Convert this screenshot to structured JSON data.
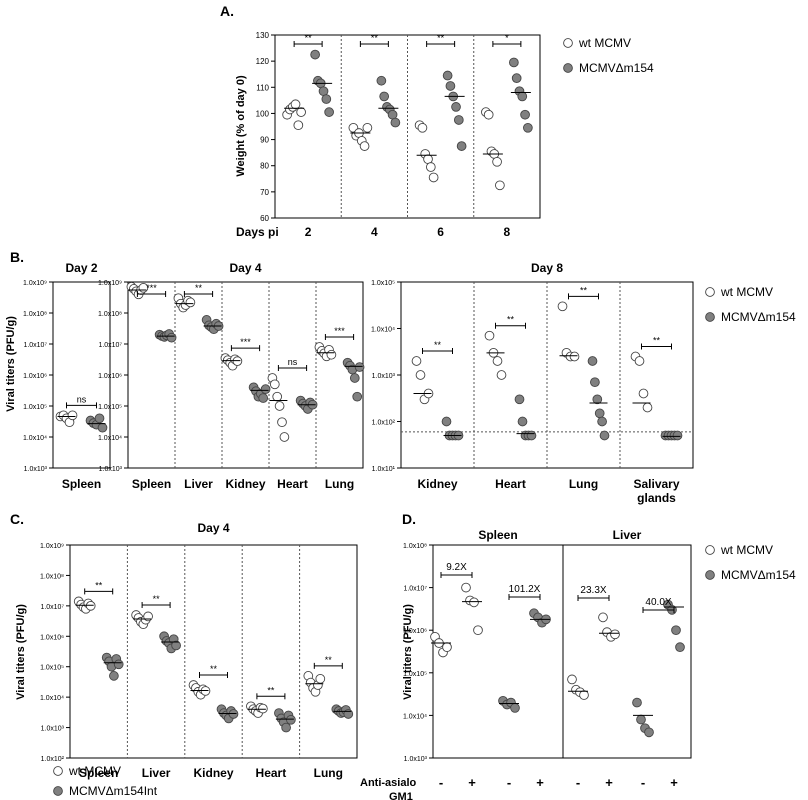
{
  "chart_data": [
    {
      "panel": "A.",
      "type": "scatter",
      "ylabel": "Weight (% of day 0)",
      "xlabel": "Days pi",
      "ylim": [
        60,
        130
      ],
      "yticks": [
        60,
        70,
        80,
        90,
        100,
        110,
        120,
        130
      ],
      "categories": [
        "2",
        "4",
        "6",
        "8"
      ],
      "legend": [
        "wt MCMV",
        "MCMVΔm154"
      ],
      "series": [
        {
          "name": "wt MCMV",
          "fill": "#ffffff",
          "values": [
            [
              99.5,
              101.5,
              102.5,
              103.5,
              95.5,
              100.5
            ],
            [
              94.5,
              91.5,
              92.5,
              89.5,
              87.5,
              94.5
            ],
            [
              95.5,
              94.5,
              84.5,
              82.5,
              79.5,
              75.5
            ],
            [
              100.5,
              99.5,
              85.5,
              84.5,
              81.5,
              72.5
            ]
          ],
          "medians": [
            102,
            92.5,
            84,
            84.5
          ]
        },
        {
          "name": "MCMVΔm154",
          "fill": "#808080",
          "values": [
            [
              122.5,
              112.5,
              111.5,
              108.5,
              105.5,
              100.5
            ],
            [
              112.5,
              106.5,
              102.5,
              101.5,
              99.5,
              96.5
            ],
            [
              114.5,
              110.5,
              106.5,
              102.5,
              97.5,
              87.5
            ],
            [
              119.5,
              113.5,
              108.5,
              106.5,
              99.5,
              94.5
            ]
          ],
          "medians": [
            111.5,
            102,
            106.5,
            108
          ]
        }
      ],
      "significance": [
        "**",
        "**",
        "**",
        "*"
      ]
    },
    {
      "panel": "B.",
      "type": "scatter",
      "ylabel": "Viral titers (PFU/g)",
      "log_scale": true,
      "subpanels": [
        {
          "title": "Day 2",
          "yticks": [
            "1.0x10³",
            "1.0x10⁴",
            "1.0x10⁵",
            "1.0x10⁶",
            "1.0x10⁷",
            "1.0x10⁸",
            "1.0x10⁹"
          ],
          "categories": [
            "Spleen"
          ],
          "wt MCMV": [
            [
              46000,
              50000,
              40000,
              30000,
              50000
            ]
          ],
          "MCMVΔm154": [
            [
              34000,
              28000,
              25000,
              40000,
              20000
            ]
          ],
          "medians": [
            [
              46000,
              27000
            ]
          ],
          "significance": [
            "ns"
          ]
        },
        {
          "title": "Day 4",
          "yticks": [
            "1.0x10³",
            "1.0x10⁴",
            "1.0x10⁵",
            "1.0x10⁶",
            "1.0x10⁷",
            "1.0x10⁸",
            "1.0x10⁹"
          ],
          "categories": [
            "Spleen",
            "Liver",
            "Kidney",
            "Heart",
            "Lung"
          ],
          "wt MCMV": [
            [
              700000000,
              600000000,
              500000000,
              400000000,
              550000000,
              650000000
            ],
            [
              300000000,
              200000000,
              150000000,
              180000000,
              250000000,
              220000000
            ],
            [
              3500000,
              3000000,
              2500000,
              2000000,
              3200000,
              2800000
            ],
            [
              800000,
              500000,
              200000,
              100000,
              30000,
              10000
            ],
            [
              8000000,
              6000000,
              5000000,
              4000000,
              6500000,
              4500000
            ]
          ],
          "MCMVΔm154": [
            [
              20000000,
              18000000,
              17000000,
              19000000,
              21000000,
              16000000
            ],
            [
              60000000,
              40000000,
              35000000,
              30000000,
              45000000,
              38000000
            ],
            [
              400000,
              300000,
              200000,
              250000,
              180000,
              350000
            ],
            [
              150000,
              120000,
              100000,
              80000,
              130000,
              110000
            ],
            [
              2500000,
              2000000,
              1500000,
              800000,
              200000,
              1800000
            ]
          ],
          "medians": [
            [
              550000000,
              18000000
            ],
            [
              200000000,
              38000000
            ],
            [
              2900000,
              320000
            ],
            [
              150000,
              110000
            ],
            [
              5200000,
              1900000
            ]
          ],
          "significance": [
            "***",
            "**",
            "***",
            "ns",
            "***"
          ]
        },
        {
          "title": "Day 8",
          "yticks": [
            "1.0x10¹",
            "1.0x10²",
            "1.0x10³",
            "1.0x10⁴",
            "1.0x10⁵"
          ],
          "categories": [
            "Kidney",
            "Heart",
            "Lung",
            "Salivary glands"
          ],
          "wt MCMV": [
            [
              2000,
              1000,
              300,
              400
            ],
            [
              7000,
              3000,
              2000,
              1000
            ],
            [
              30000,
              3000,
              2500,
              2500
            ],
            [
              2500,
              2000,
              400,
              200
            ]
          ],
          "MCMVΔm154": [
            [
              100,
              50,
              50,
              50,
              50
            ],
            [
              300,
              100,
              50,
              50,
              50
            ],
            [
              2000,
              700,
              300,
              150,
              100,
              50
            ],
            [
              50,
              50,
              50,
              50,
              50
            ]
          ],
          "medians": [
            [
              400,
              50
            ],
            [
              3000,
              55
            ],
            [
              2600,
              250
            ],
            [
              250,
              48
            ]
          ],
          "detection_limit": 60,
          "significance": [
            "**",
            "**",
            "**",
            "**"
          ]
        }
      ],
      "legend": [
        "wt MCMV",
        "MCMVΔm154"
      ]
    },
    {
      "panel": "C.",
      "type": "scatter",
      "title": "Day 4",
      "ylabel": "Viral titers (PFU/g)",
      "log_scale": true,
      "yticks": [
        "1.0x10²",
        "1.0x10³",
        "1.0x10⁴",
        "1.0x10⁵",
        "1.0x10⁶",
        "1.0x10⁷",
        "1.0x10⁸",
        "1.0x10⁹"
      ],
      "categories": [
        "Spleen",
        "Liver",
        "Kidney",
        "Heart",
        "Lung"
      ],
      "wt MCMV": [
        [
          14000000,
          11000000,
          9000000,
          8000000,
          12000000,
          10000000
        ],
        [
          5000000,
          4000000,
          3000000,
          2500000,
          3500000,
          4500000
        ],
        [
          25000,
          20000,
          15000,
          12000,
          18000,
          16000
        ],
        [
          5000,
          4000,
          3500,
          3000,
          4500,
          4200
        ],
        [
          50000,
          30000,
          20000,
          15000,
          25000,
          40000
        ]
      ],
      "MCMVΔm154Int": [
        [
          200000,
          150000,
          100000,
          50000,
          180000,
          120000
        ],
        [
          1000000,
          700000,
          600000,
          400000,
          800000,
          500000
        ],
        [
          4000,
          3000,
          2500,
          2000,
          3500,
          2800
        ],
        [
          3000,
          2000,
          1500,
          1000,
          2500,
          1800
        ],
        [
          4000,
          3500,
          3000,
          3200,
          3800,
          2800
        ]
      ],
      "medians": [
        [
          10500000,
          135000
        ],
        [
          3700000,
          650000
        ],
        [
          16500,
          2900
        ],
        [
          4000,
          1900
        ],
        [
          27500,
          3400
        ]
      ],
      "significance": [
        "**",
        "**",
        "**",
        "**",
        "**"
      ],
      "legend": [
        "wt MCMV",
        "MCMVΔm154Int"
      ]
    },
    {
      "panel": "D.",
      "type": "scatter",
      "ylabel": "Viral titers (PFU/g)",
      "log_scale": true,
      "yticks": [
        "1.0x10³",
        "1.0x10⁴",
        "1.0x10⁵",
        "1.0x10⁶",
        "1.0x10⁷",
        "1.0x10⁸"
      ],
      "groups": [
        "Spleen",
        "Liver"
      ],
      "treatment_label": "Anti-asialo GM1",
      "treatment": [
        "-",
        "+",
        "-",
        "+",
        "-",
        "+",
        "-",
        "+"
      ],
      "wt MCMV": [
        [
          700000,
          500000,
          300000,
          400000
        ],
        [
          10000000,
          5000000,
          4500000,
          1000000
        ],
        [],
        [],
        [
          70000,
          40000,
          35000,
          30000
        ],
        [
          2000000,
          900000,
          700000,
          800000
        ],
        [],
        []
      ],
      "MCMVΔm154": [
        [],
        [],
        [
          22000,
          18000,
          20000,
          15000
        ],
        [
          2500000,
          2000000,
          1500000,
          1800000
        ],
        [],
        [],
        [
          20000,
          8000,
          5000,
          4000
        ],
        [
          4000000,
          3000000,
          1000000,
          400000
        ]
      ],
      "medians": [
        500000,
        4700000,
        19000,
        1800000,
        37000,
        850000,
        10000,
        3500000
      ],
      "fold_changes": [
        "9.2X",
        "101.2X",
        "23.3X",
        "40.0X"
      ],
      "legend": [
        "wt MCMV",
        "MCMVΔm154"
      ]
    }
  ]
}
